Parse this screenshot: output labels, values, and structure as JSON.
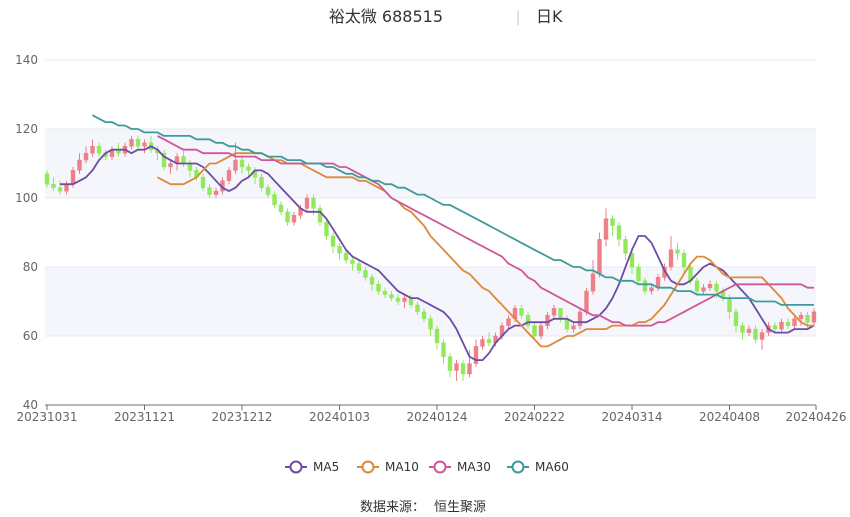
{
  "chart_data": {
    "type": "candlestick",
    "title_name": "裕太微 688515",
    "title_period": "日K",
    "ylim": [
      40,
      140
    ],
    "yticks": [
      40,
      60,
      80,
      100,
      120,
      140
    ],
    "x_tick_labels": [
      "20231031",
      "20231121",
      "20231212",
      "20240103",
      "20240124",
      "20240222",
      "20240314",
      "20240408",
      "20240426"
    ],
    "x_tick_index": [
      0,
      15,
      30,
      45,
      60,
      75,
      90,
      105,
      118
    ],
    "grid": "horizontal",
    "legend_position": "bottom",
    "up_color": "#ec7f87",
    "down_color": "#91e85c",
    "series": [
      {
        "name": "MA5",
        "color": "#6e4ba4",
        "values": [
          104,
          104,
          104,
          105,
          106,
          108,
          111,
          113,
          114,
          114,
          114,
          113,
          114,
          114,
          115,
          114,
          112,
          111,
          110,
          110,
          110,
          110,
          109,
          107,
          105,
          103,
          102,
          103,
          105,
          106,
          108,
          108,
          107,
          105,
          103,
          101,
          99,
          97,
          96,
          96,
          96,
          94,
          91,
          88,
          85,
          83,
          82,
          81,
          80,
          79,
          77,
          75,
          73,
          72,
          71,
          71,
          70,
          69,
          68,
          67,
          65,
          62,
          58,
          54,
          53,
          53,
          55,
          58,
          60,
          62,
          63,
          63,
          64,
          64,
          64,
          64,
          65,
          65,
          65,
          64,
          64,
          64,
          65,
          66,
          68,
          71,
          75,
          80,
          85,
          89,
          89,
          87,
          83,
          79,
          76,
          75,
          75,
          76,
          78,
          80,
          81,
          80,
          79,
          77,
          75,
          73,
          71,
          68,
          65,
          62,
          61,
          61,
          61,
          62,
          62,
          62,
          63
        ]
      },
      {
        "name": "MA10",
        "color": "#dc8a3a",
        "values": [
          106,
          105,
          104,
          104,
          104,
          105,
          106,
          108,
          110,
          110,
          111,
          112,
          113,
          113,
          113,
          113,
          113,
          112,
          111,
          111,
          110,
          110,
          110,
          109,
          108,
          107,
          106,
          106,
          106,
          106,
          106,
          105,
          105,
          104,
          103,
          102,
          100,
          99,
          97,
          96,
          94,
          92,
          89,
          87,
          85,
          83,
          81,
          79,
          78,
          76,
          74,
          73,
          71,
          69,
          67,
          65,
          63,
          61,
          59,
          57,
          57,
          58,
          59,
          60,
          60,
          61,
          62,
          62,
          62,
          62,
          63,
          63,
          63,
          63,
          64,
          64,
          65,
          67,
          69,
          72,
          75,
          78,
          81,
          83,
          83,
          82,
          80,
          78,
          77,
          77,
          77,
          77,
          77,
          77,
          75,
          73,
          71,
          68,
          66,
          64,
          63,
          63
        ]
      },
      {
        "name": "MA30",
        "color": "#d0569a",
        "values": [
          118,
          117,
          116,
          115,
          114,
          114,
          114,
          113,
          113,
          113,
          113,
          113,
          112,
          112,
          112,
          112,
          111,
          111,
          111,
          110,
          110,
          110,
          110,
          110,
          110,
          110,
          110,
          110,
          109,
          109,
          108,
          107,
          106,
          105,
          104,
          102,
          100,
          99,
          98,
          97,
          96,
          95,
          94,
          93,
          92,
          91,
          90,
          89,
          88,
          87,
          86,
          85,
          84,
          83,
          81,
          80,
          79,
          77,
          76,
          74,
          73,
          72,
          71,
          70,
          69,
          68,
          67,
          66,
          66,
          65,
          64,
          64,
          63,
          63,
          63,
          63,
          63,
          64,
          64,
          65,
          66,
          67,
          68,
          69,
          70,
          71,
          72,
          73,
          74,
          75,
          75,
          75,
          75,
          75,
          75,
          75,
          75,
          75,
          75,
          75,
          74,
          74
        ]
      },
      {
        "name": "MA60",
        "color": "#3e9a9b",
        "values": [
          124,
          123,
          122,
          122,
          121,
          121,
          120,
          120,
          119,
          119,
          119,
          118,
          118,
          118,
          118,
          118,
          117,
          117,
          117,
          116,
          116,
          115,
          115,
          114,
          114,
          113,
          113,
          112,
          112,
          112,
          111,
          111,
          111,
          110,
          110,
          110,
          109,
          109,
          108,
          107,
          107,
          106,
          106,
          105,
          105,
          104,
          104,
          103,
          103,
          102,
          101,
          101,
          100,
          99,
          98,
          98,
          97,
          96,
          95,
          94,
          93,
          92,
          91,
          90,
          89,
          88,
          87,
          86,
          85,
          84,
          83,
          82,
          82,
          81,
          80,
          80,
          79,
          79,
          78,
          77,
          77,
          76,
          76,
          76,
          75,
          75,
          75,
          74,
          74,
          74,
          73,
          73,
          73,
          72,
          72,
          72,
          72,
          71,
          71,
          71,
          71,
          71,
          70,
          70,
          70,
          70,
          69,
          69,
          69,
          69,
          69,
          69
        ]
      }
    ],
    "candles": [
      [
        107,
        104,
        108,
        103
      ],
      [
        104,
        103,
        106,
        102
      ],
      [
        103,
        102,
        105,
        101
      ],
      [
        102,
        104,
        105,
        101
      ],
      [
        104,
        108,
        109,
        103
      ],
      [
        108,
        111,
        113,
        107
      ],
      [
        111,
        113,
        115,
        110
      ],
      [
        113,
        115,
        117,
        112
      ],
      [
        115,
        113,
        116,
        112
      ],
      [
        113,
        112,
        114,
        111
      ],
      [
        112,
        114,
        115,
        111
      ],
      [
        114,
        113,
        116,
        112
      ],
      [
        113,
        115,
        116,
        112
      ],
      [
        115,
        117,
        118,
        114
      ],
      [
        117,
        115,
        118,
        114
      ],
      [
        115,
        116,
        117,
        113
      ],
      [
        116,
        114,
        118,
        113
      ],
      [
        114,
        113,
        115,
        111
      ],
      [
        113,
        109,
        114,
        108
      ],
      [
        109,
        110,
        111,
        107
      ],
      [
        110,
        112,
        113,
        108
      ],
      [
        112,
        110,
        114,
        109
      ],
      [
        110,
        108,
        111,
        106
      ],
      [
        108,
        106,
        109,
        105
      ],
      [
        106,
        103,
        107,
        102
      ],
      [
        103,
        101,
        104,
        100
      ],
      [
        101,
        102,
        103,
        100
      ],
      [
        102,
        105,
        106,
        101
      ],
      [
        105,
        108,
        109,
        104
      ],
      [
        108,
        111,
        116,
        107
      ],
      [
        111,
        109,
        112,
        107
      ],
      [
        109,
        108,
        110,
        106
      ],
      [
        108,
        106,
        109,
        104
      ],
      [
        106,
        103,
        107,
        102
      ],
      [
        103,
        101,
        104,
        100
      ],
      [
        101,
        98,
        102,
        97
      ],
      [
        98,
        96,
        99,
        95
      ],
      [
        96,
        93,
        97,
        92
      ],
      [
        93,
        95,
        96,
        92
      ],
      [
        95,
        97,
        98,
        94
      ],
      [
        97,
        100,
        101,
        96
      ],
      [
        100,
        97,
        101,
        95
      ],
      [
        97,
        93,
        98,
        92
      ],
      [
        93,
        89,
        94,
        88
      ],
      [
        89,
        86,
        90,
        84
      ],
      [
        86,
        84,
        87,
        82
      ],
      [
        84,
        82,
        85,
        81
      ],
      [
        82,
        81,
        83,
        79
      ],
      [
        81,
        79,
        82,
        78
      ],
      [
        79,
        77,
        80,
        76
      ],
      [
        77,
        75,
        78,
        73
      ],
      [
        75,
        73,
        76,
        72
      ],
      [
        73,
        72,
        74,
        71
      ],
      [
        72,
        71,
        73,
        70
      ],
      [
        71,
        70,
        72,
        69
      ],
      [
        70,
        71,
        72,
        68
      ],
      [
        71,
        69,
        72,
        68
      ],
      [
        69,
        67,
        70,
        66
      ],
      [
        67,
        65,
        68,
        64
      ],
      [
        65,
        62,
        66,
        60
      ],
      [
        62,
        58,
        63,
        56
      ],
      [
        58,
        54,
        59,
        52
      ],
      [
        54,
        50,
        55,
        48
      ],
      [
        50,
        52,
        53,
        47
      ],
      [
        52,
        49,
        53,
        47
      ],
      [
        49,
        52,
        56,
        48
      ],
      [
        52,
        57,
        59,
        51
      ],
      [
        57,
        59,
        60,
        56
      ],
      [
        59,
        58,
        61,
        57
      ],
      [
        58,
        60,
        61,
        57
      ],
      [
        60,
        63,
        64,
        59
      ],
      [
        63,
        65,
        66,
        62
      ],
      [
        65,
        68,
        69,
        64
      ],
      [
        68,
        66,
        69,
        65
      ],
      [
        66,
        63,
        67,
        62
      ],
      [
        63,
        60,
        64,
        59
      ],
      [
        60,
        63,
        64,
        59
      ],
      [
        63,
        66,
        67,
        62
      ],
      [
        66,
        68,
        69,
        65
      ],
      [
        68,
        65,
        68,
        64
      ],
      [
        65,
        62,
        66,
        61
      ],
      [
        62,
        63,
        64,
        61
      ],
      [
        63,
        67,
        68,
        62
      ],
      [
        67,
        73,
        74,
        66
      ],
      [
        73,
        78,
        82,
        72
      ],
      [
        78,
        88,
        90,
        77
      ],
      [
        88,
        94,
        97,
        86
      ],
      [
        94,
        92,
        95,
        89
      ],
      [
        92,
        88,
        93,
        86
      ],
      [
        88,
        84,
        89,
        82
      ],
      [
        84,
        80,
        85,
        78
      ],
      [
        80,
        76,
        81,
        75
      ],
      [
        76,
        73,
        77,
        72
      ],
      [
        73,
        74,
        75,
        72
      ],
      [
        74,
        77,
        78,
        73
      ],
      [
        77,
        80,
        81,
        76
      ],
      [
        80,
        85,
        89,
        79
      ],
      [
        85,
        84,
        87,
        82
      ],
      [
        84,
        80,
        85,
        78
      ],
      [
        80,
        76,
        81,
        75
      ],
      [
        76,
        73,
        77,
        72
      ],
      [
        73,
        74,
        75,
        72
      ],
      [
        74,
        75,
        76,
        73
      ],
      [
        75,
        73,
        76,
        71
      ],
      [
        73,
        71,
        74,
        70
      ],
      [
        71,
        67,
        72,
        65
      ],
      [
        67,
        63,
        68,
        61
      ],
      [
        63,
        61,
        64,
        59
      ],
      [
        61,
        62,
        63,
        60
      ],
      [
        62,
        59,
        63,
        58
      ],
      [
        59,
        61,
        62,
        56
      ],
      [
        61,
        63,
        64,
        60
      ],
      [
        63,
        62,
        64,
        61
      ],
      [
        62,
        64,
        65,
        61
      ],
      [
        64,
        63,
        65,
        62
      ],
      [
        63,
        65,
        66,
        62
      ],
      [
        65,
        66,
        67,
        63
      ],
      [
        66,
        64,
        67,
        62
      ],
      [
        64,
        67,
        68,
        63
      ]
    ],
    "source_label": "数据来源：",
    "source_value": "恒生聚源"
  }
}
